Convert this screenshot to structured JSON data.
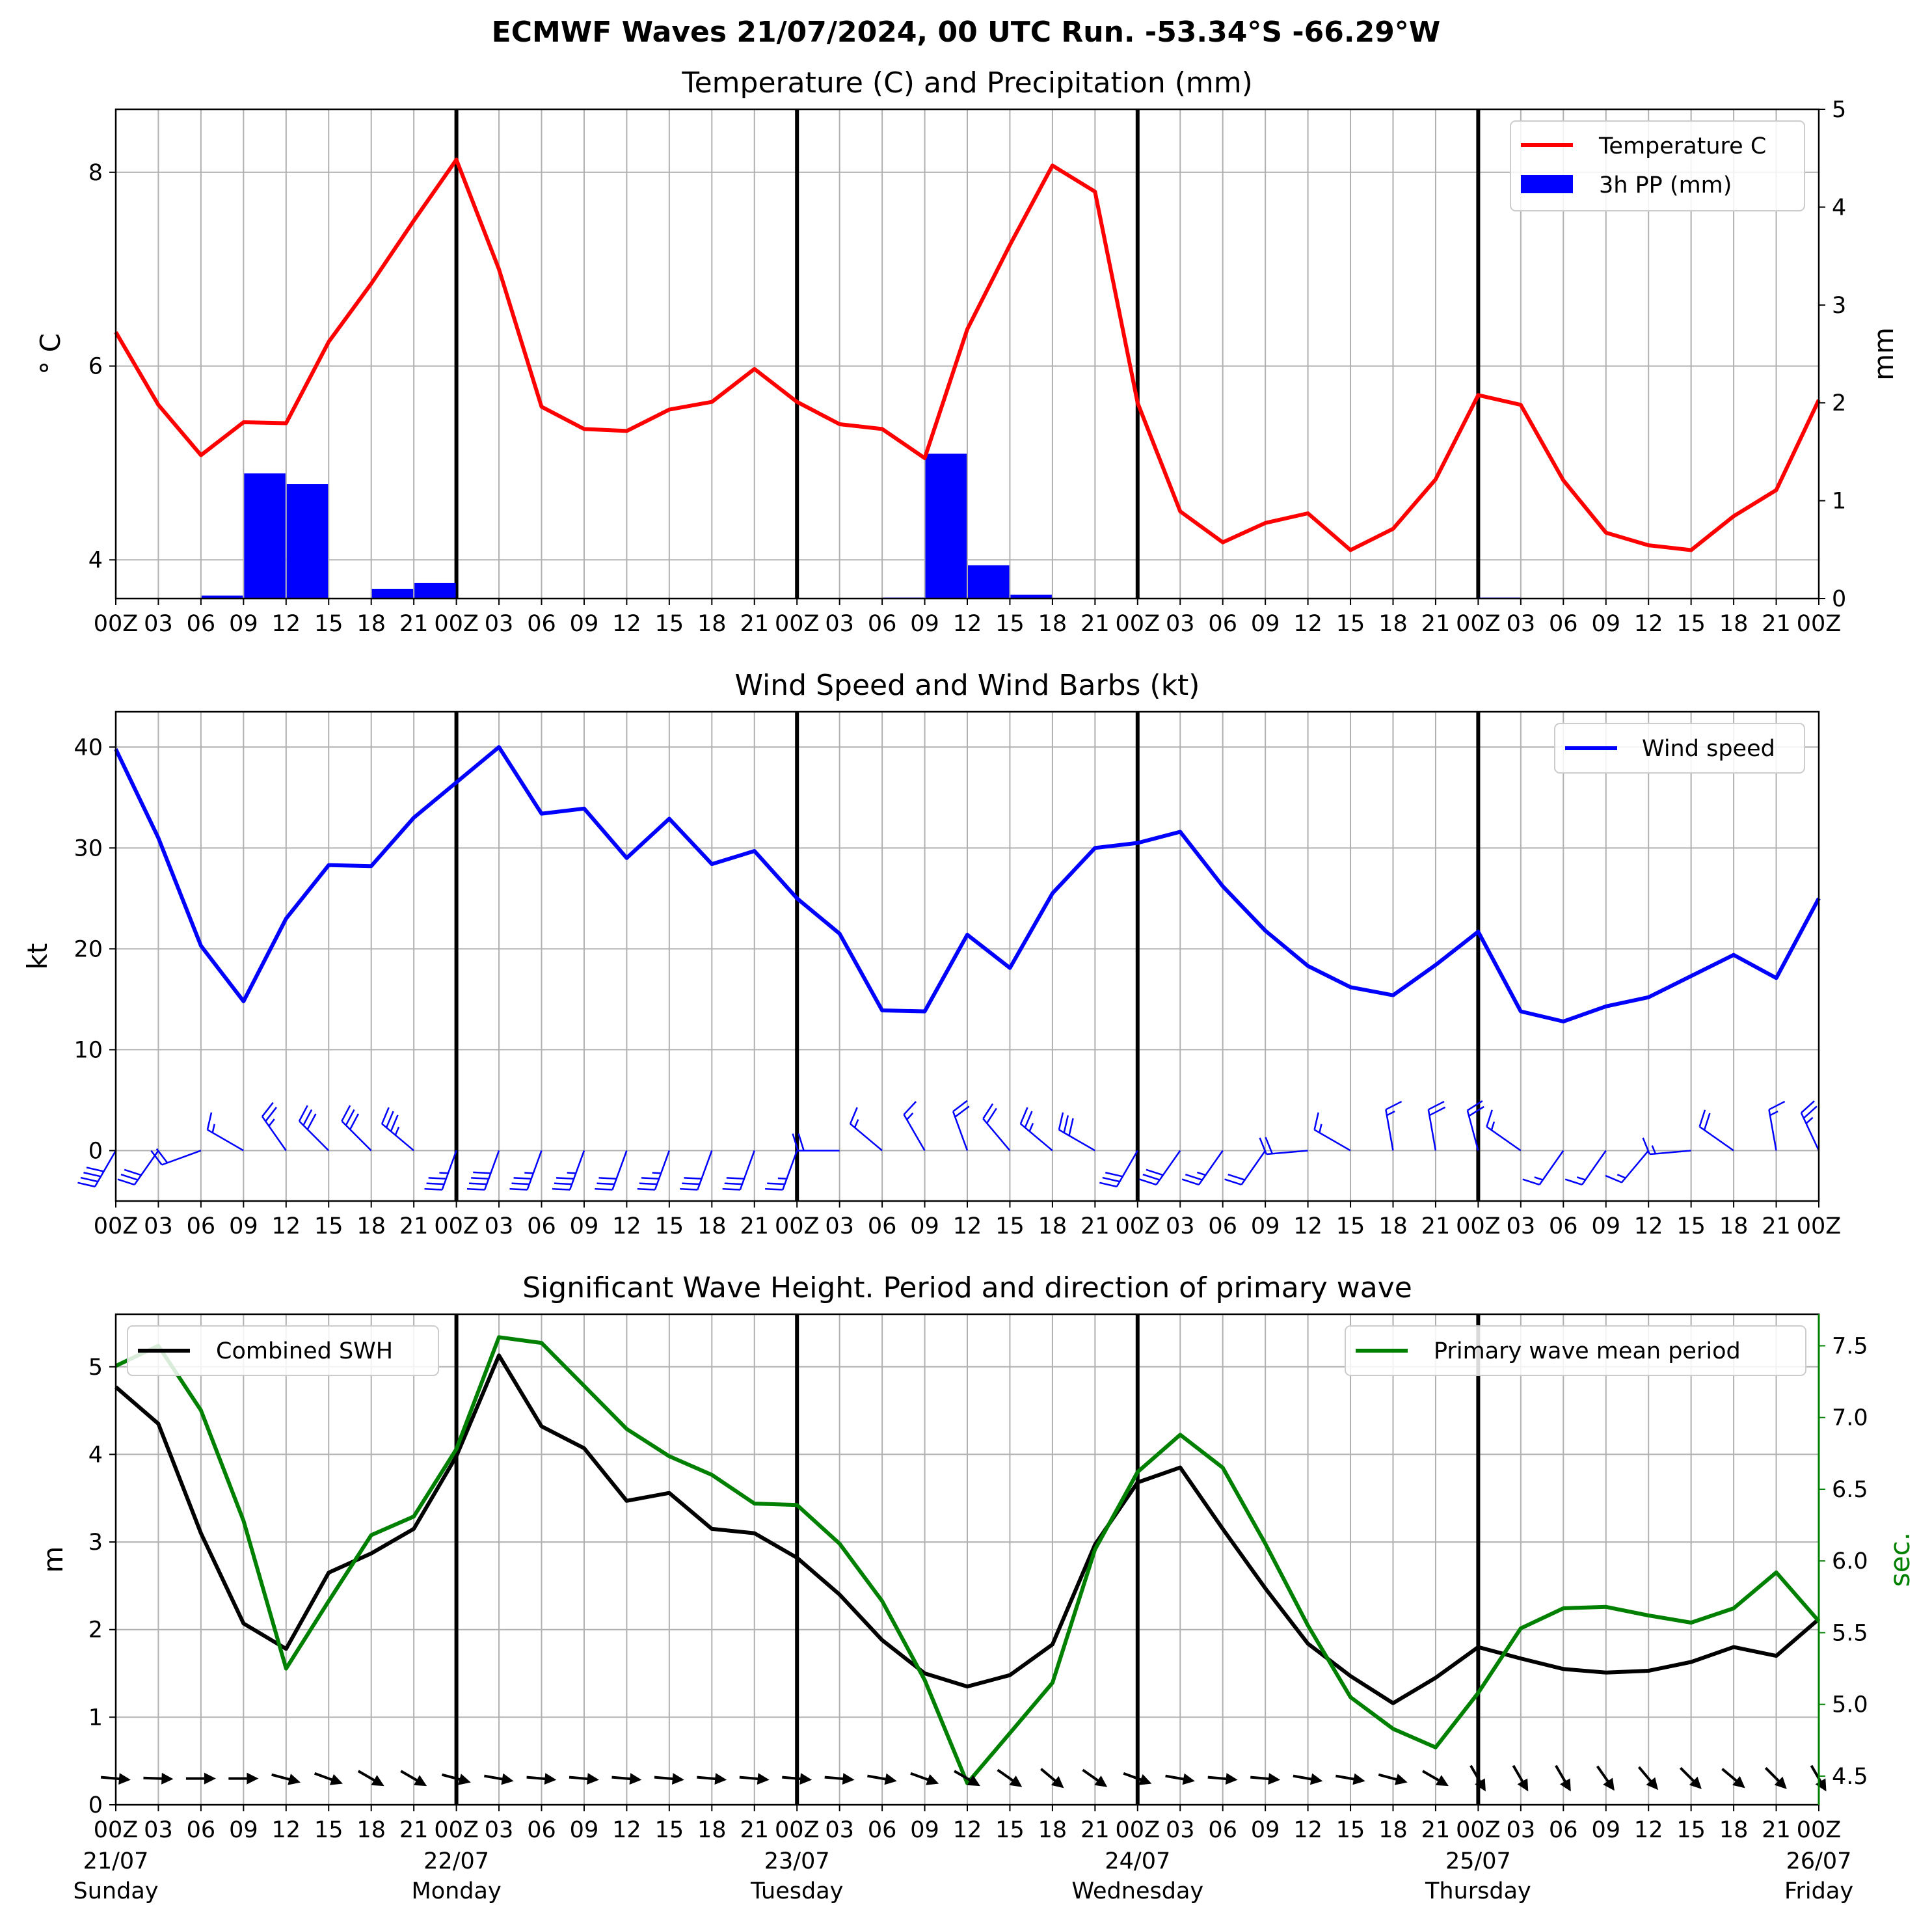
{
  "title": "ECMWF Waves 21/07/2024, 00 UTC Run. -53.34°S -66.29°W",
  "x_tick_labels": [
    "00Z",
    "03",
    "06",
    "09",
    "12",
    "15",
    "18",
    "21",
    "00Z",
    "03",
    "06",
    "09",
    "12",
    "15",
    "18",
    "21",
    "00Z",
    "03",
    "06",
    "09",
    "12",
    "15",
    "18",
    "21",
    "00Z",
    "03",
    "06",
    "09",
    "12",
    "15",
    "18",
    "21",
    "00Z",
    "03",
    "06",
    "09",
    "12",
    "15",
    "18",
    "21",
    "00Z"
  ],
  "day_labels": [
    {
      "date": "21/07",
      "day": "Sunday",
      "hour": 0
    },
    {
      "date": "22/07",
      "day": "Monday",
      "hour": 24
    },
    {
      "date": "23/07",
      "day": "Tuesday",
      "hour": 48
    },
    {
      "date": "24/07",
      "day": "Wednesday",
      "hour": 72
    },
    {
      "date": "25/07",
      "day": "Thursday",
      "hour": 96
    },
    {
      "date": "26/07",
      "day": "Friday",
      "hour": 120
    }
  ],
  "colors": {
    "temperature": "#ff0000",
    "precip": "#0000ff",
    "wind": "#0000ff",
    "swh": "#000000",
    "period": "#008000",
    "day_line": "#000000",
    "grid": "#b0b0b0"
  },
  "chart_data": [
    {
      "type": "line",
      "title": "Temperature (C) and Precipitation (mm)",
      "ylabel": "° C",
      "ylabel_right": "mm",
      "ylim": [
        3.6,
        8.65
      ],
      "ylim_right": [
        0,
        5
      ],
      "yticks": [
        4,
        6,
        8
      ],
      "yticks_right": [
        0,
        1,
        2,
        3,
        4,
        5
      ],
      "grid": true,
      "legend_position": "top-right",
      "x_hours": [
        0,
        3,
        6,
        9,
        12,
        15,
        18,
        21,
        24,
        27,
        30,
        33,
        36,
        39,
        42,
        45,
        48,
        51,
        54,
        57,
        60,
        63,
        66,
        69,
        72,
        75,
        78,
        81,
        84,
        87,
        90,
        93,
        96,
        99,
        102,
        105,
        108,
        111,
        114,
        117,
        120
      ],
      "series": [
        {
          "name": "Temperature C",
          "kind": "line",
          "axis": "left",
          "values": [
            6.35,
            5.6,
            5.08,
            5.42,
            5.41,
            6.25,
            6.85,
            7.5,
            8.13,
            7.0,
            5.58,
            5.35,
            5.33,
            5.55,
            5.63,
            5.97,
            5.63,
            5.4,
            5.35,
            5.05,
            6.38,
            7.25,
            8.07,
            7.8,
            5.62,
            4.5,
            4.18,
            4.38,
            4.48,
            4.1,
            4.32,
            4.83,
            5.7,
            5.6,
            4.82,
            4.28,
            4.15,
            4.1,
            4.45,
            4.72,
            5.65
          ]
        },
        {
          "name": "3h PP (mm)",
          "kind": "bar",
          "axis": "right",
          "values": [
            0,
            0,
            0.03,
            1.28,
            1.17,
            0,
            0.1,
            0.16,
            0,
            0,
            0,
            0,
            0,
            0,
            0,
            0,
            0,
            0,
            0.01,
            1.48,
            0.34,
            0.04,
            0,
            0,
            0,
            0,
            0,
            0,
            0,
            0,
            0,
            0,
            0.01,
            0,
            0,
            0,
            0,
            0,
            0,
            0
          ]
        }
      ]
    },
    {
      "type": "line",
      "title": "Wind Speed and Wind Barbs (kt)",
      "ylabel": "kt",
      "ylim": [
        -5,
        43.5
      ],
      "yticks": [
        0,
        10,
        20,
        30,
        40
      ],
      "grid": true,
      "legend_position": "top-right",
      "x_hours": [
        0,
        3,
        6,
        9,
        12,
        15,
        18,
        21,
        24,
        27,
        30,
        33,
        36,
        39,
        42,
        45,
        48,
        51,
        54,
        57,
        60,
        63,
        66,
        69,
        72,
        75,
        78,
        81,
        84,
        87,
        90,
        93,
        96,
        99,
        102,
        105,
        108,
        111,
        114,
        117,
        120
      ],
      "series": [
        {
          "name": "Wind speed",
          "kind": "line",
          "values": [
            39.8,
            31.0,
            20.3,
            14.8,
            23.0,
            28.3,
            28.2,
            33.0,
            36.5,
            40.0,
            33.4,
            33.9,
            29.0,
            32.9,
            28.4,
            29.7,
            25.0,
            21.5,
            13.9,
            13.8,
            21.4,
            18.1,
            25.5,
            30.0,
            30.5,
            31.6,
            26.2,
            21.8,
            18.3,
            16.2,
            15.4,
            18.4,
            21.7,
            13.8,
            12.8,
            14.3,
            15.2,
            17.3,
            19.4,
            17.1,
            25.0
          ]
        }
      ],
      "barbs": {
        "y": 0,
        "direction_from_deg": [
          210,
          215,
          250,
          300,
          325,
          315,
          315,
          310,
          200,
          200,
          200,
          200,
          200,
          200,
          200,
          200,
          200,
          270,
          310,
          330,
          340,
          320,
          310,
          300,
          210,
          215,
          215,
          215,
          265,
          300,
          350,
          350,
          345,
          305,
          215,
          215,
          220,
          265,
          305,
          350,
          335
        ],
        "speed_kt": [
          39.8,
          31.0,
          20.3,
          14.8,
          23.0,
          28.3,
          28.2,
          33.0,
          36.5,
          40.0,
          33.4,
          33.9,
          29.0,
          32.9,
          28.4,
          29.7,
          25.0,
          21.5,
          13.9,
          13.8,
          21.4,
          18.1,
          25.5,
          30.0,
          30.5,
          31.6,
          26.2,
          21.8,
          18.3,
          16.2,
          15.4,
          18.4,
          21.7,
          13.8,
          12.8,
          14.3,
          15.2,
          17.3,
          19.4,
          17.1,
          25.0
        ]
      }
    },
    {
      "type": "line",
      "title": "Significant Wave Height. Period and direction of primary wave",
      "ylabel": "m",
      "ylabel_right": "sec.",
      "ylim": [
        0,
        5.6
      ],
      "ylim_right": [
        4.3,
        7.72
      ],
      "yticks": [
        0,
        1,
        2,
        3,
        4,
        5
      ],
      "yticks_right": [
        4.5,
        5.0,
        5.5,
        6.0,
        6.5,
        7.0,
        7.5
      ],
      "grid": true,
      "legend_left_position": "top-left",
      "legend_right_position": "top-right",
      "x_hours": [
        0,
        3,
        6,
        9,
        12,
        15,
        18,
        21,
        24,
        27,
        30,
        33,
        36,
        39,
        42,
        45,
        48,
        51,
        54,
        57,
        60,
        63,
        66,
        69,
        72,
        75,
        78,
        81,
        84,
        87,
        90,
        93,
        96,
        99,
        102,
        105,
        108,
        111,
        114,
        117,
        120
      ],
      "series": [
        {
          "name": "Combined SWH",
          "kind": "line",
          "axis": "left",
          "values": [
            4.77,
            4.35,
            3.1,
            2.07,
            1.78,
            2.65,
            2.87,
            3.15,
            3.98,
            5.13,
            4.32,
            4.07,
            3.47,
            3.56,
            3.15,
            3.1,
            2.82,
            2.4,
            1.88,
            1.5,
            1.35,
            1.48,
            1.83,
            2.97,
            3.68,
            3.85,
            3.15,
            2.47,
            1.84,
            1.47,
            1.16,
            1.45,
            1.8,
            1.67,
            1.55,
            1.51,
            1.53,
            1.63,
            1.8,
            1.7,
            2.12
          ]
        },
        {
          "name": "Primary wave mean period",
          "kind": "line",
          "axis": "right",
          "values": [
            7.36,
            7.5,
            7.05,
            6.28,
            5.25,
            5.72,
            6.18,
            6.31,
            6.78,
            7.56,
            7.52,
            7.22,
            6.92,
            6.73,
            6.6,
            6.4,
            6.39,
            6.12,
            5.72,
            5.17,
            4.45,
            4.8,
            5.15,
            6.08,
            6.62,
            6.88,
            6.65,
            6.12,
            5.55,
            5.05,
            4.83,
            4.7,
            5.08,
            5.53,
            5.67,
            5.68,
            5.62,
            5.57,
            5.67,
            5.92,
            5.58
          ]
        }
      ],
      "wave_direction_arrows": {
        "y": 0.3,
        "direction_from_deg": [
          275,
          272,
          270,
          270,
          285,
          290,
          300,
          300,
          285,
          280,
          275,
          275,
          275,
          275,
          275,
          275,
          275,
          275,
          280,
          290,
          300,
          305,
          310,
          305,
          290,
          280,
          275,
          275,
          280,
          280,
          285,
          300,
          330,
          330,
          330,
          325,
          320,
          315,
          310,
          315,
          330
        ]
      }
    }
  ]
}
